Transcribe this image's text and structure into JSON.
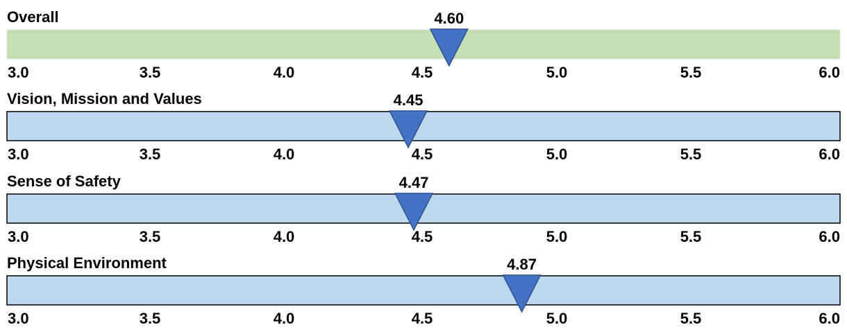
{
  "chart_data": [
    {
      "type": "bar",
      "title": "Overall",
      "value": 4.6,
      "value_label": "4.60",
      "xlim": [
        3.0,
        6.0
      ],
      "ticks": [
        "3.0",
        "3.5",
        "4.0",
        "4.5",
        "5.0",
        "5.5",
        "6.0"
      ],
      "bar_color": "#c5e0b4",
      "bar_border": "none",
      "marker_color": "#4472c4"
    },
    {
      "type": "bar",
      "title": "Vision, Mission and Values",
      "value": 4.45,
      "value_label": "4.45",
      "xlim": [
        3.0,
        6.0
      ],
      "ticks": [
        "3.0",
        "3.5",
        "4.0",
        "4.5",
        "5.0",
        "5.5",
        "6.0"
      ],
      "bar_color": "#bdd7ee",
      "bar_border": "#000000",
      "marker_color": "#4472c4"
    },
    {
      "type": "bar",
      "title": "Sense of Safety",
      "value": 4.47,
      "value_label": "4.47",
      "xlim": [
        3.0,
        6.0
      ],
      "ticks": [
        "3.0",
        "3.5",
        "4.0",
        "4.5",
        "5.0",
        "5.5",
        "6.0"
      ],
      "bar_color": "#bdd7ee",
      "bar_border": "#000000",
      "marker_color": "#4472c4"
    },
    {
      "type": "bar",
      "title": "Physical Environment",
      "value": 4.87,
      "value_label": "4.87",
      "xlim": [
        3.0,
        6.0
      ],
      "ticks": [
        "3.0",
        "3.5",
        "4.0",
        "4.5",
        "5.0",
        "5.5",
        "6.0"
      ],
      "bar_color": "#bdd7ee",
      "bar_border": "#000000",
      "marker_color": "#4472c4"
    }
  ]
}
